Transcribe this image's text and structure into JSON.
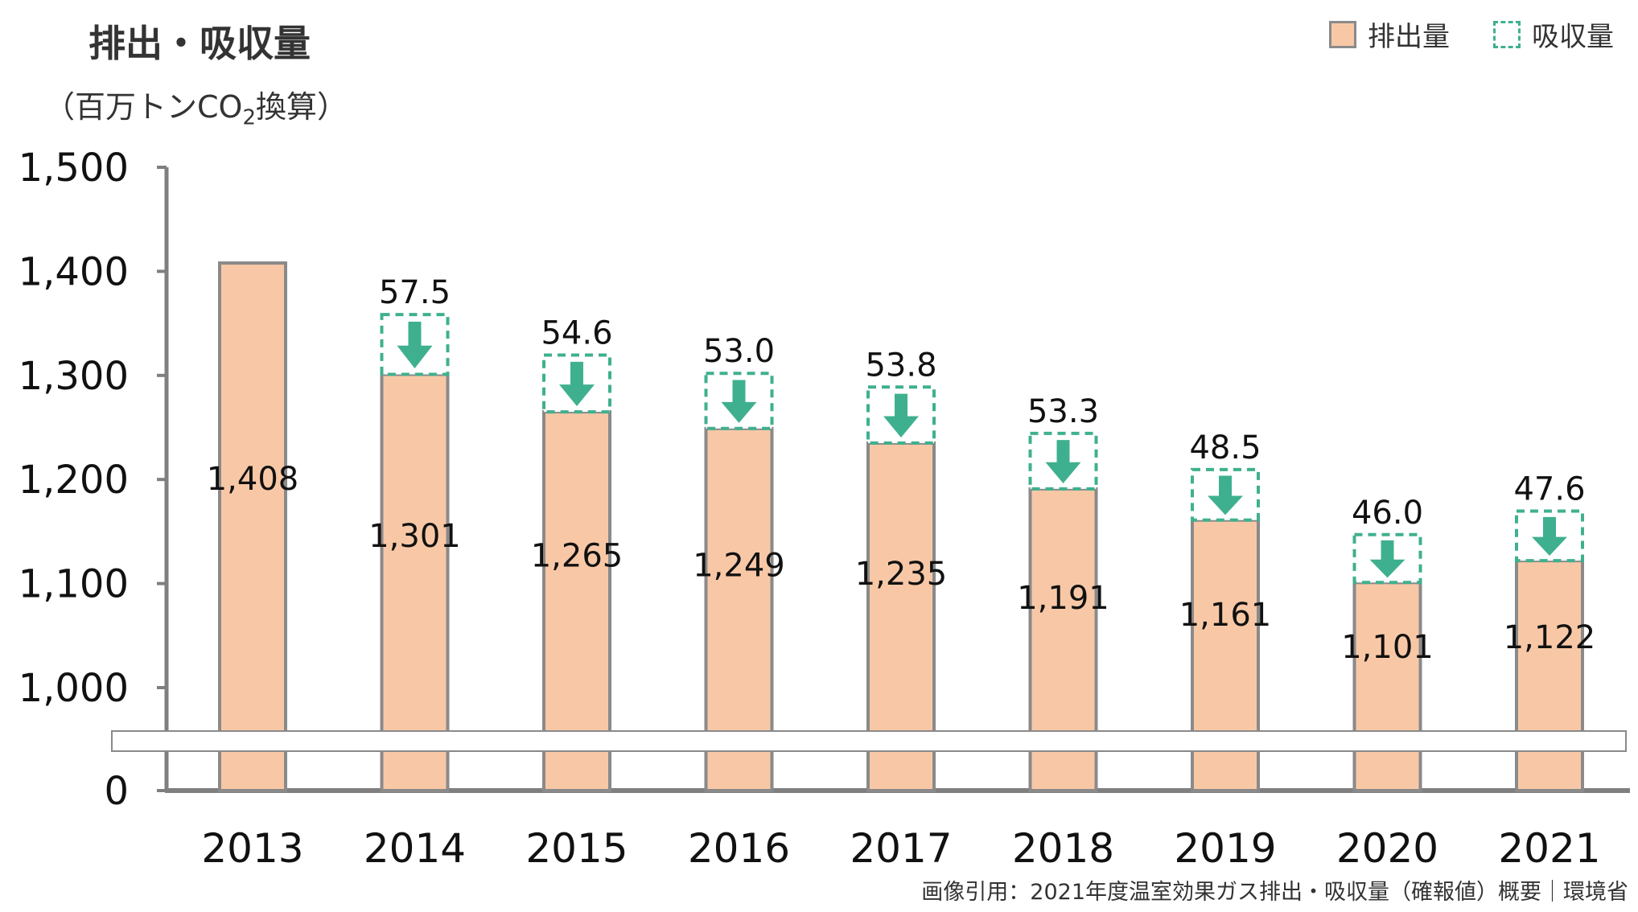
{
  "title": "排出・吸収量",
  "unit_prefix": "（百万トンCO",
  "unit_sub": "2",
  "unit_suffix": "換算）",
  "legend": {
    "emission": "排出量",
    "absorption": "吸収量"
  },
  "source": "画像引用：2021年度温室効果ガス排出・吸収量（確報値）概要｜環境省",
  "colors": {
    "emission_fill": "#f8c8a6",
    "emission_stroke": "#8a8a8a",
    "absorption": "#3fb08f",
    "axis": "#7f7f7f"
  },
  "chart_data": {
    "type": "bar",
    "stacked": true,
    "categories": [
      "2013",
      "2014",
      "2015",
      "2016",
      "2017",
      "2018",
      "2019",
      "2020",
      "2021"
    ],
    "series": [
      {
        "name": "排出量",
        "values": [
          1408,
          1301,
          1265,
          1249,
          1235,
          1191,
          1161,
          1101,
          1122
        ],
        "labels": [
          "1,408",
          "1,301",
          "1,265",
          "1,249",
          "1,235",
          "1,191",
          "1,161",
          "1,101",
          "1,122"
        ]
      },
      {
        "name": "吸収量",
        "values": [
          null,
          57.5,
          54.6,
          53.0,
          53.8,
          53.3,
          48.5,
          46.0,
          47.6
        ],
        "labels": [
          "",
          "57.5",
          "54.6",
          "53.0",
          "53.8",
          "53.3",
          "48.5",
          "46.0",
          "47.6"
        ]
      }
    ],
    "yticks": [
      0,
      1000,
      1100,
      1200,
      1300,
      1400,
      1500
    ],
    "ytick_labels": [
      "0",
      "1,000",
      "1,100",
      "1,200",
      "1,300",
      "1,400",
      "1,500"
    ],
    "ylim": [
      0,
      1500
    ],
    "axis_break": [
      0,
      1000
    ],
    "grid": false,
    "legend_position": "top-right"
  }
}
